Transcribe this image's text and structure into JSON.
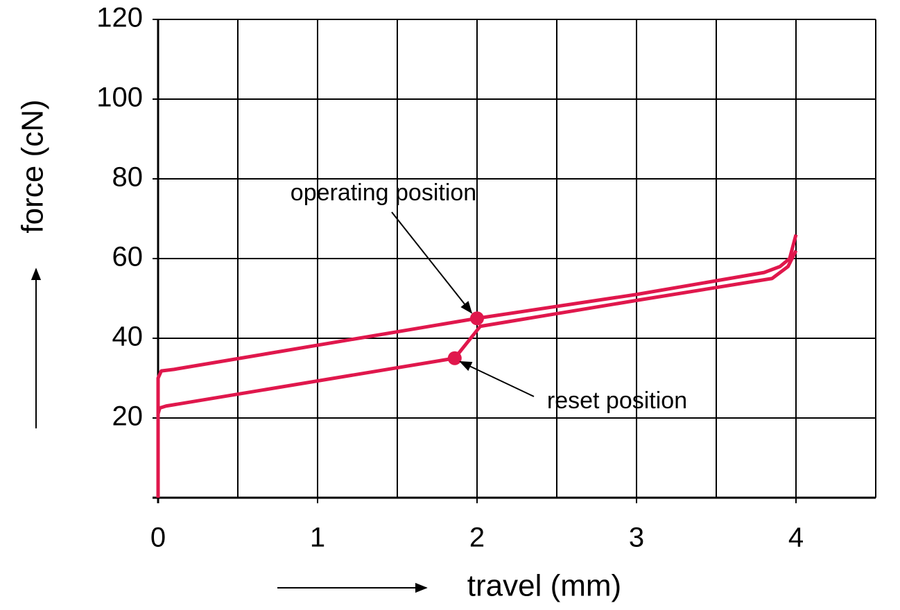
{
  "chart_data": {
    "type": "line",
    "xlabel": "travel (mm)",
    "ylabel": "force (cN)",
    "xlim": [
      0,
      4.5
    ],
    "ylim": [
      0,
      120
    ],
    "xticks": [
      0,
      1,
      2,
      3,
      4
    ],
    "yticks": [
      20,
      40,
      60,
      80,
      100,
      120
    ],
    "xgrid": [
      0.5,
      1.5,
      2.5,
      3.5,
      4.5
    ],
    "grid": true,
    "series": [
      {
        "color": "#e0174c",
        "x": [
          0,
          0,
          0.02,
          0.1,
          2.0,
          3.0,
          3.8,
          3.9,
          3.96,
          4.0
        ],
        "values": [
          0,
          30,
          31.8,
          32.2,
          45,
          51,
          56.5,
          58,
          60,
          66
        ]
      },
      {
        "color": "#e0174c",
        "x": [
          4.0,
          3.95,
          3.85,
          3.0,
          2.02,
          1.86,
          0.05,
          0.01,
          0,
          0
        ],
        "values": [
          62,
          58,
          55,
          49.5,
          43,
          35,
          23,
          22.5,
          21,
          0
        ]
      }
    ],
    "points": [
      {
        "label": "operating position",
        "x": 2.0,
        "y": 45,
        "color": "#e0174c"
      },
      {
        "label": "reset position",
        "x": 1.86,
        "y": 35,
        "color": "#e0174c"
      }
    ]
  }
}
